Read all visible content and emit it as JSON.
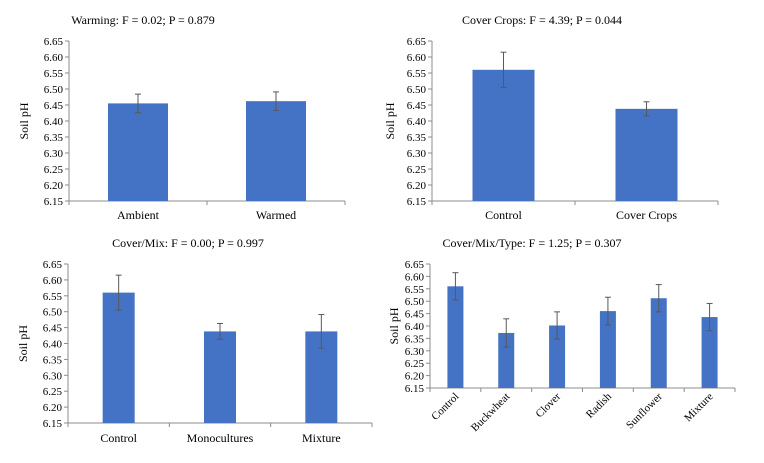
{
  "chart_data": [
    {
      "type": "bar",
      "title": "Warming:  F = 0.02; P = 0.879",
      "ylabel": "Soil pH",
      "xlabel": "",
      "categories": [
        "Ambient",
        "Warmed"
      ],
      "values": [
        6.455,
        6.462
      ],
      "errors": [
        0.029,
        0.029
      ],
      "ylim": [
        6.15,
        6.65
      ],
      "yticks": [
        "6.15",
        "6.20",
        "6.25",
        "6.30",
        "6.35",
        "6.40",
        "6.45",
        "6.50",
        "6.55",
        "6.60",
        "6.65"
      ],
      "bar_color": "#4472C4",
      "grid": false
    },
    {
      "type": "bar",
      "title": "Cover Crops: F = 4.39; P = 0.044",
      "ylabel": "Soil pH",
      "xlabel": "",
      "categories": [
        "Control",
        "Cover Crops"
      ],
      "values": [
        6.56,
        6.438
      ],
      "errors": [
        0.055,
        0.022
      ],
      "ylim": [
        6.15,
        6.65
      ],
      "yticks": [
        "6.15",
        "6.20",
        "6.25",
        "6.30",
        "6.35",
        "6.40",
        "6.45",
        "6.50",
        "6.55",
        "6.60",
        "6.65"
      ],
      "bar_color": "#4472C4",
      "grid": false
    },
    {
      "type": "bar",
      "title": "Cover/Mix:  F = 0.00; P = 0.997",
      "ylabel": "Soil pH",
      "xlabel": "",
      "categories": [
        "Control",
        "Monocultures",
        "Mixture"
      ],
      "values": [
        6.56,
        6.438,
        6.438
      ],
      "errors": [
        0.055,
        0.025,
        0.053
      ],
      "ylim": [
        6.15,
        6.65
      ],
      "yticks": [
        "6.15",
        "6.20",
        "6.25",
        "6.30",
        "6.35",
        "6.40",
        "6.45",
        "6.50",
        "6.55",
        "6.60",
        "6.65"
      ],
      "bar_color": "#4472C4",
      "grid": false
    },
    {
      "type": "bar",
      "title": "Cover/Mix/Type:  F = 1.25; P = 0.307",
      "ylabel": "Soil pH",
      "xlabel": "",
      "categories": [
        "Control",
        "Buckwheat",
        "Clover",
        "Radish",
        "Sunflower",
        "Mixture"
      ],
      "values": [
        6.56,
        6.372,
        6.402,
        6.46,
        6.512,
        6.436
      ],
      "errors": [
        0.055,
        0.057,
        0.055,
        0.056,
        0.055,
        0.055
      ],
      "ylim": [
        6.15,
        6.65
      ],
      "yticks": [
        "6.15",
        "6.20",
        "6.25",
        "6.30",
        "6.35",
        "6.40",
        "6.45",
        "6.50",
        "6.55",
        "6.60",
        "6.65"
      ],
      "bar_color": "#4472C4",
      "grid": false,
      "rotated_xlabels": true
    }
  ]
}
